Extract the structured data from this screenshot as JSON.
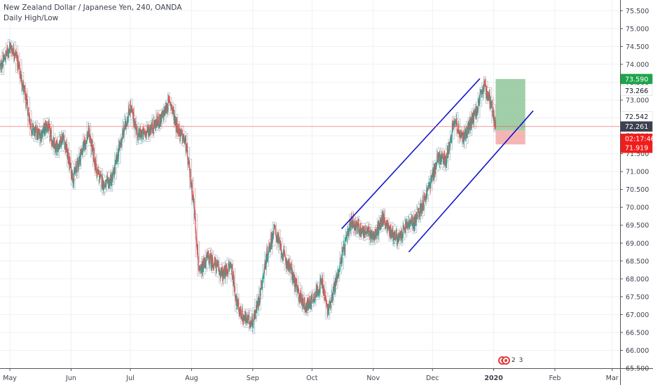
{
  "header": {
    "symbol_line": "New Zealand Dollar / Japanese Yen, 240, OANDA",
    "indicator_line": "Daily High/Low"
  },
  "price_tags": [
    {
      "value": 73.59,
      "label": "73.590",
      "bg": "#1fa34a",
      "fg": "#ffffff"
    },
    {
      "value": 73.266,
      "label": "73.266",
      "bg": "#ffffff",
      "fg": "#131722"
    },
    {
      "value": 72.542,
      "label": "72.542",
      "bg": "#ffffff",
      "fg": "#131722"
    },
    {
      "value": 72.261,
      "label": "72.261",
      "bg": "#3b414e",
      "fg": "#ffffff"
    },
    {
      "value": 71.919,
      "label": "71.919",
      "bg": "#f01d1d",
      "fg": "#ffffff"
    }
  ],
  "countdown": {
    "value": 71.919,
    "label": "02:17:46",
    "bg": "#f01d1d",
    "fg": "#ffffff"
  },
  "events": {
    "count_label": "2 3"
  },
  "colors": {
    "up": "#26a69a",
    "down": "#ef5350",
    "channel": "#1414c8",
    "envelope": "#c3c7cf",
    "last_price_line": "#ef5350",
    "target_zone": "#8fc79a",
    "stop_zone": "#f2a8a8"
  },
  "chart_data": {
    "type": "candlestick",
    "title": "New Zealand Dollar / Japanese Yen, 240, OANDA",
    "subtitle": "Daily High/Low",
    "y_ticks": [
      66.0,
      66.5,
      67.0,
      67.5,
      68.0,
      68.5,
      69.0,
      69.5,
      70.0,
      70.5,
      71.0,
      71.5,
      72.0,
      72.5,
      73.0,
      73.5,
      74.0,
      74.5,
      75.0,
      75.5
    ],
    "y_tick_labels": [
      "66.000",
      "66.500",
      "67.000",
      "67.500",
      "68.000",
      "68.500",
      "69.000",
      "69.500",
      "70.000",
      "70.500",
      "71.000",
      "71.500",
      "72.000",
      "72.500",
      "73.000",
      "73.500",
      "74.000",
      "74.500",
      "75.000",
      "75.500"
    ],
    "bottom_partial_tick": "65.500",
    "x_ticks": [
      "May",
      "Jun",
      "Jul",
      "Aug",
      "Sep",
      "Oct",
      "Nov",
      "Dec",
      "2020",
      "Feb",
      "Mar"
    ],
    "x_tick_dates": [
      "2019-05-01",
      "2019-06-01",
      "2019-07-01",
      "2019-08-01",
      "2019-09-01",
      "2019-10-01",
      "2019-11-01",
      "2019-12-01",
      "2020-01-01",
      "2020-02-01",
      "2020-03-01"
    ],
    "ylim": [
      65.5,
      75.8
    ],
    "xlim": [
      "2019-04-26",
      "2020-03-05"
    ],
    "last_price": 72.261,
    "close_path": [
      [
        "2019-04-26",
        73.9
      ],
      [
        "2019-05-01",
        74.5
      ],
      [
        "2019-05-04",
        74.3
      ],
      [
        "2019-05-08",
        73.3
      ],
      [
        "2019-05-12",
        72.2
      ],
      [
        "2019-05-16",
        72.0
      ],
      [
        "2019-05-20",
        72.3
      ],
      [
        "2019-05-24",
        71.6
      ],
      [
        "2019-05-28",
        72.0
      ],
      [
        "2019-06-02",
        70.8
      ],
      [
        "2019-06-06",
        71.5
      ],
      [
        "2019-06-10",
        72.1
      ],
      [
        "2019-06-14",
        71.0
      ],
      [
        "2019-06-18",
        70.6
      ],
      [
        "2019-06-22",
        70.8
      ],
      [
        "2019-06-26",
        71.8
      ],
      [
        "2019-07-01",
        72.8
      ],
      [
        "2019-07-05",
        72.0
      ],
      [
        "2019-07-09",
        72.1
      ],
      [
        "2019-07-13",
        72.3
      ],
      [
        "2019-07-17",
        72.5
      ],
      [
        "2019-07-21",
        73.0
      ],
      [
        "2019-07-25",
        72.2
      ],
      [
        "2019-07-29",
        71.8
      ],
      [
        "2019-08-02",
        70.2
      ],
      [
        "2019-08-05",
        68.1
      ],
      [
        "2019-08-09",
        68.6
      ],
      [
        "2019-08-13",
        68.4
      ],
      [
        "2019-08-17",
        68.1
      ],
      [
        "2019-08-21",
        68.4
      ],
      [
        "2019-08-24",
        67.3
      ],
      [
        "2019-08-27",
        66.9
      ],
      [
        "2019-09-01",
        66.8
      ],
      [
        "2019-09-04",
        67.4
      ],
      [
        "2019-09-08",
        68.6
      ],
      [
        "2019-09-12",
        69.4
      ],
      [
        "2019-09-16",
        68.7
      ],
      [
        "2019-09-20",
        68.3
      ],
      [
        "2019-09-24",
        67.6
      ],
      [
        "2019-09-28",
        67.2
      ],
      [
        "2019-10-02",
        67.5
      ],
      [
        "2019-10-06",
        67.9
      ],
      [
        "2019-10-09",
        67.1
      ],
      [
        "2019-10-13",
        67.9
      ],
      [
        "2019-10-17",
        68.8
      ],
      [
        "2019-10-21",
        69.6
      ],
      [
        "2019-10-25",
        69.4
      ],
      [
        "2019-10-29",
        69.3
      ],
      [
        "2019-11-02",
        69.2
      ],
      [
        "2019-11-06",
        69.7
      ],
      [
        "2019-11-10",
        69.3
      ],
      [
        "2019-11-14",
        69.1
      ],
      [
        "2019-11-18",
        69.5
      ],
      [
        "2019-11-22",
        69.6
      ],
      [
        "2019-11-26",
        70.1
      ],
      [
        "2019-11-30",
        70.7
      ],
      [
        "2019-12-04",
        71.4
      ],
      [
        "2019-12-08",
        71.3
      ],
      [
        "2019-12-12",
        72.5
      ],
      [
        "2019-12-16",
        71.9
      ],
      [
        "2019-12-20",
        72.3
      ],
      [
        "2019-12-24",
        72.8
      ],
      [
        "2019-12-27",
        73.4
      ],
      [
        "2019-12-31",
        72.9
      ],
      [
        "2020-01-02",
        72.26
      ]
    ],
    "channel_upper": [
      [
        "2019-10-16",
        69.4
      ],
      [
        "2019-12-25",
        73.6
      ]
    ],
    "channel_lower": [
      [
        "2019-11-19",
        68.75
      ],
      [
        "2020-01-21",
        72.7
      ]
    ],
    "long_position": {
      "start": "2020-01-02",
      "end": "2020-01-17",
      "entry": 72.15,
      "target": 73.59,
      "stop": 71.98
    }
  }
}
